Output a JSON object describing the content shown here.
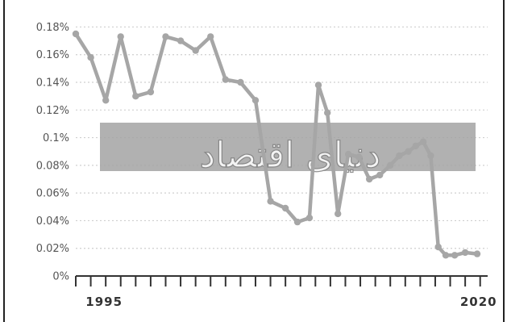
{
  "chart_data": {
    "type": "line",
    "x": [
      1993.0,
      1994.0,
      1995.0,
      1996.0,
      1997.0,
      1998.0,
      1999.0,
      2000.0,
      2001.0,
      2002.0,
      2003.0,
      2004.0,
      2005.0,
      2006.0,
      2007.0,
      2007.8,
      2008.6,
      2009.2,
      2009.8,
      2010.5,
      2011.2,
      2011.9,
      2012.6,
      2013.3,
      2014.0,
      2014.6,
      2015.2,
      2015.7,
      2016.2,
      2016.7,
      2017.2,
      2017.7,
      2018.3,
      2019.0,
      2019.8
    ],
    "series": [
      {
        "values": [
          0.175,
          0.158,
          0.127,
          0.173,
          0.13,
          0.133,
          0.173,
          0.17,
          0.163,
          0.173,
          0.142,
          0.14,
          0.127,
          0.054,
          0.049,
          0.039,
          0.042,
          0.138,
          0.118,
          0.045,
          0.088,
          0.086,
          0.07,
          0.073,
          0.08,
          0.087,
          0.09,
          0.094,
          0.097,
          0.087,
          0.021,
          0.015,
          0.015,
          0.017,
          0.016
        ]
      }
    ],
    "yticks": [
      "0%",
      "0.02%",
      "0.04%",
      "0.06%",
      "0.08%",
      "0.1%",
      "0.12%",
      "0.14%",
      "0.16%",
      "0.18%"
    ],
    "ytick_values": [
      0.0,
      0.02,
      0.04,
      0.06,
      0.08,
      0.1,
      0.12,
      0.14,
      0.16,
      0.18
    ],
    "xticks": [
      "1995",
      "2020"
    ],
    "xtick_values": [
      1995,
      2020
    ],
    "xlim": [
      1993.0,
      2020.5
    ],
    "ylim": [
      0.0,
      0.19
    ],
    "grid": true,
    "colors": {
      "line": "#a6a6a6",
      "marker": "#a6a6a6",
      "grid": "#cfcfcf",
      "axis": "#333333",
      "watermark_band": "#a3a3a3"
    },
    "watermark_text": "دنیای اقتصاد"
  }
}
